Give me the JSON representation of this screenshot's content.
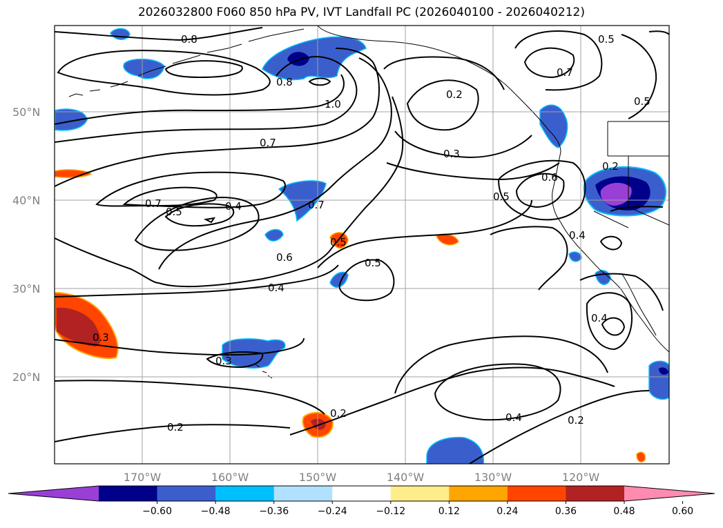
{
  "title": "2026032800 F060 850 hPa PV, IVT Landfall PC (2026040100 - 2026040212)",
  "lat_labels": [
    "50°N",
    "40°N",
    "30°N",
    "20°N"
  ],
  "lon_labels": [
    "170°W",
    "160°W",
    "150°W",
    "140°W",
    "130°W",
    "120°W"
  ],
  "colorbar": {
    "ticks": [
      "−0.60",
      "−0.48",
      "−0.36",
      "−0.24",
      "−0.12",
      "0.12",
      "0.24",
      "0.36",
      "0.48",
      "0.60"
    ],
    "colors": [
      "#9a3fd6",
      "#00008b",
      "#3a5fcd",
      "#00bfff",
      "#b0e2ff",
      "#ffffff",
      "#ffec8b",
      "#ffa500",
      "#ff4500",
      "#b22222",
      "#ff8cb0"
    ]
  },
  "contour_labels": [
    "0.8",
    "1.0",
    "0.8",
    "0.2",
    "0.5",
    "0.7",
    "0.5",
    "0.7",
    "0.3",
    "0.6",
    "0.5",
    "0.7",
    "0.5",
    "0.4",
    "0.7",
    "0.6",
    "0.5",
    "0.5",
    "0.4",
    "0.3",
    "0.3",
    "0.2",
    "0.2",
    "0.4",
    "0.2",
    "0.4",
    "0.4",
    "0.2"
  ]
}
